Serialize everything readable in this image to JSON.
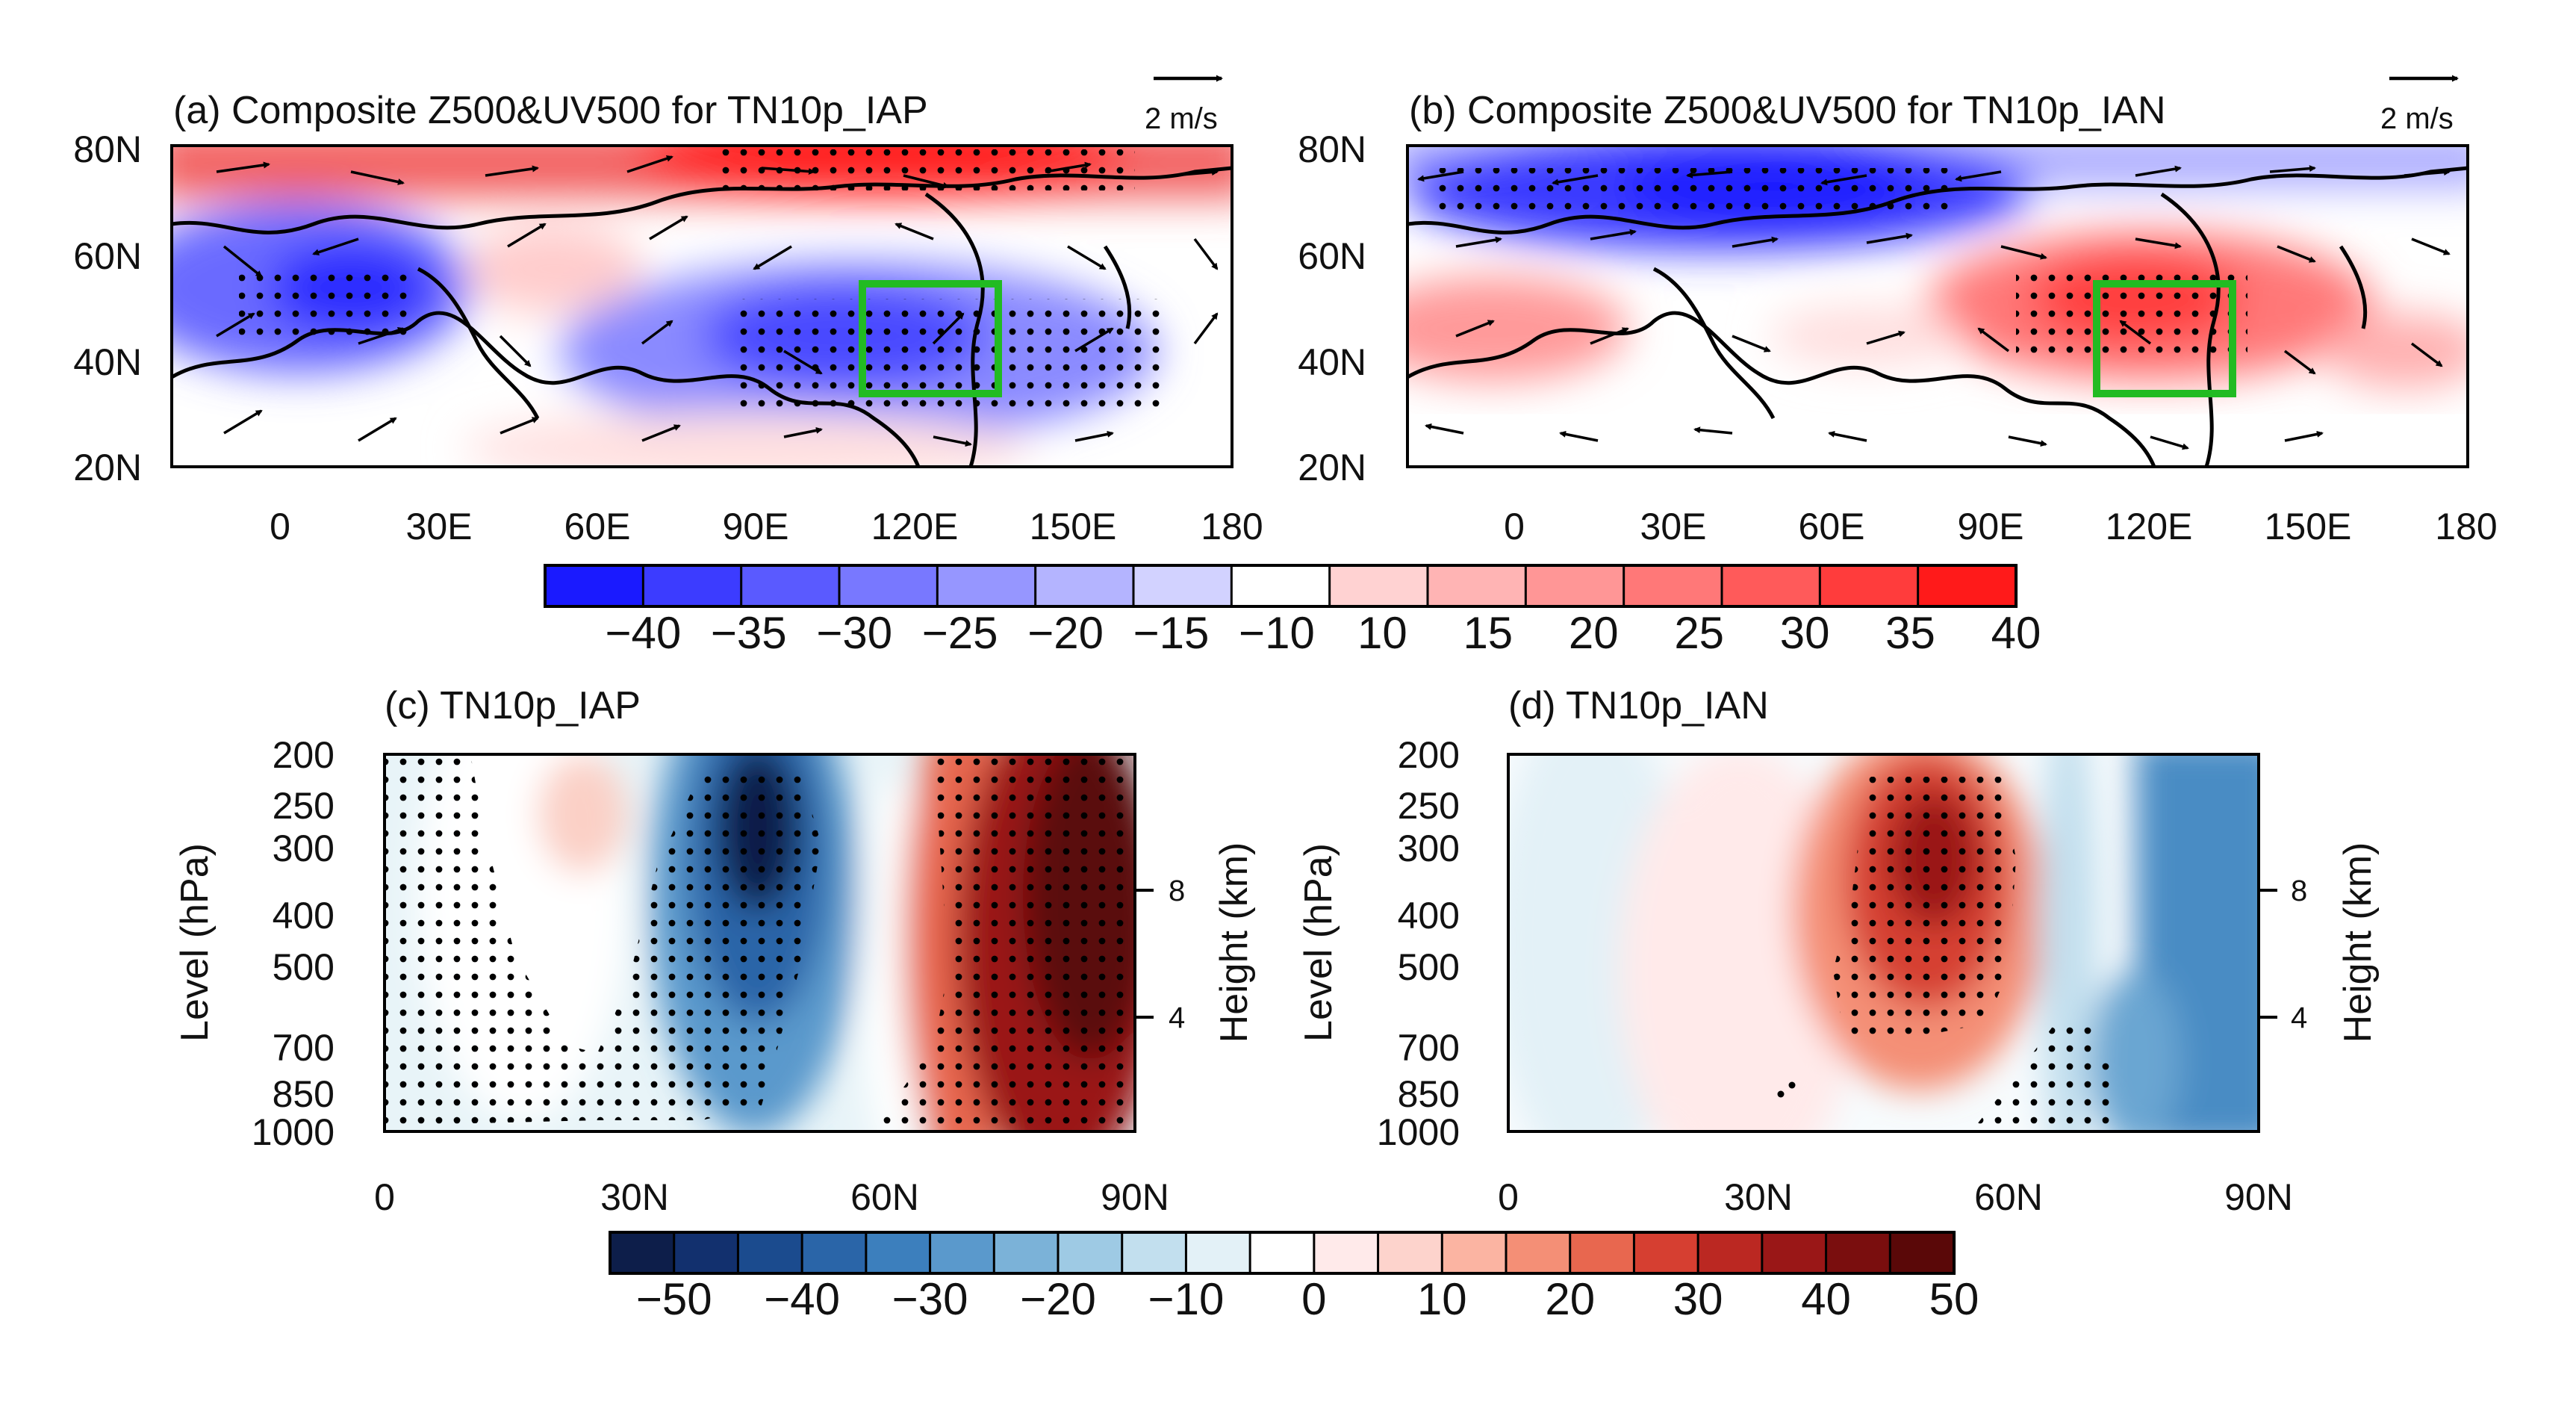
{
  "colors": {
    "blue_strong": "#1a1aff",
    "red_strong": "#ff1a1a",
    "box_green": "#22bb22",
    "navy": "#0d1e4a",
    "maroon": "#5a0808"
  },
  "chart_data": [
    {
      "type": "heatmap",
      "panel": "a",
      "title": "(a) Composite Z500&UV500 for TN10p_IAP",
      "variable": "Z500 anomaly with UV500 wind vectors",
      "x_ticks": [
        "0",
        "30E",
        "60E",
        "90E",
        "120E",
        "150E",
        "180"
      ],
      "y_ticks": [
        "80N",
        "60N",
        "40N",
        "20N"
      ],
      "xlim": [
        -20,
        180
      ],
      "ylim": [
        20,
        80
      ],
      "vector_ref": "2 m/s",
      "box": {
        "lon": [
          110,
          135
        ],
        "lat": [
          35,
          55
        ]
      },
      "anomaly_centers": [
        {
          "lon": 110,
          "lat": 82,
          "value": 40,
          "sign": "positive"
        },
        {
          "lon": 20,
          "lat": 45,
          "value": -40,
          "sign": "negative"
        },
        {
          "lon": 115,
          "lat": 45,
          "value": -40,
          "sign": "negative"
        }
      ]
    },
    {
      "type": "heatmap",
      "panel": "b",
      "title": "(b) Composite Z500&UV500 for TN10p_IAN",
      "variable": "Z500 anomaly with UV500 wind vectors",
      "x_ticks": [
        "0",
        "30E",
        "60E",
        "90E",
        "120E",
        "150E",
        "180"
      ],
      "y_ticks": [
        "80N",
        "60N",
        "40N",
        "20N"
      ],
      "xlim": [
        -20,
        180
      ],
      "ylim": [
        20,
        80
      ],
      "vector_ref": "2 m/s",
      "box": {
        "lon": [
          110,
          135
        ],
        "lat": [
          35,
          55
        ]
      },
      "anomaly_centers": [
        {
          "lon": 60,
          "lat": 72,
          "value": -40,
          "sign": "negative"
        },
        {
          "lon": 120,
          "lat": 47,
          "value": 40,
          "sign": "positive"
        },
        {
          "lon": 10,
          "lat": 45,
          "value": 25,
          "sign": "positive"
        }
      ]
    },
    {
      "type": "colorbar",
      "panel": "colorbar-top",
      "labels": [
        "-40",
        "-35",
        "-30",
        "-25",
        "-20",
        "-15",
        "-10",
        "10",
        "15",
        "20",
        "25",
        "30",
        "35",
        "40"
      ],
      "colors": [
        "#1a1aff",
        "#3c3cff",
        "#5a5aff",
        "#7878ff",
        "#9696ff",
        "#b4b4ff",
        "#d2d2ff",
        "#ffffff",
        "#ffd2d2",
        "#ffb4b4",
        "#ff9696",
        "#ff7878",
        "#ff5a5a",
        "#ff3c3c",
        "#ff1a1a"
      ]
    },
    {
      "type": "heatmap",
      "panel": "c",
      "title": "(c) TN10p_IAP",
      "xlabel": "",
      "ylabel": "Level (hPa)",
      "y2label": "Height (km)",
      "x_ticks": [
        "0",
        "30N",
        "60N",
        "90N"
      ],
      "xlim": [
        0,
        90
      ],
      "y_levels": [
        "200",
        "250",
        "300",
        "400",
        "500",
        "700",
        "850",
        "1000"
      ],
      "y2_ticks": [
        "8",
        "4"
      ],
      "anomaly_centers": [
        {
          "lat": 45,
          "level": 300,
          "value": -50,
          "sign": "negative"
        },
        {
          "lat": 80,
          "level": 350,
          "value": 50,
          "sign": "positive"
        },
        {
          "lat": 25,
          "level": 250,
          "value": 10,
          "sign": "positive"
        }
      ]
    },
    {
      "type": "heatmap",
      "panel": "d",
      "title": "(d) TN10p_IAN",
      "xlabel": "",
      "ylabel": "Level (hPa)",
      "y2label": "Height (km)",
      "x_ticks": [
        "0",
        "30N",
        "60N",
        "90N"
      ],
      "xlim": [
        0,
        90
      ],
      "y_levels": [
        "200",
        "250",
        "300",
        "400",
        "500",
        "700",
        "850",
        "1000"
      ],
      "y2_ticks": [
        "8",
        "4"
      ],
      "anomaly_centers": [
        {
          "lat": 50,
          "level": 300,
          "value": 40,
          "sign": "positive"
        },
        {
          "lat": 80,
          "level": 500,
          "value": -30,
          "sign": "negative"
        }
      ]
    },
    {
      "type": "colorbar",
      "panel": "colorbar-bottom",
      "labels": [
        "-50",
        "-40",
        "-30",
        "-20",
        "-10",
        "0",
        "10",
        "20",
        "30",
        "40",
        "50"
      ],
      "colors": [
        "#0d1e4a",
        "#12306e",
        "#1b4b8e",
        "#2a65a8",
        "#3c7fbd",
        "#5a99cc",
        "#7bb2d8",
        "#9ecae4",
        "#c2dfee",
        "#e3f1f7",
        "#ffffff",
        "#ffeaea",
        "#fdd3cc",
        "#fbb4a2",
        "#f48f76",
        "#e8674f",
        "#d63f31",
        "#bb2822",
        "#9a1717",
        "#7a0e0e",
        "#5a0808"
      ]
    }
  ]
}
